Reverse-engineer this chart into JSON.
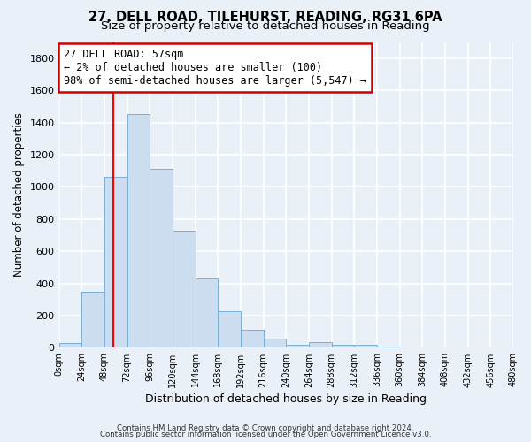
{
  "title": "27, DELL ROAD, TILEHURST, READING, RG31 6PA",
  "subtitle": "Size of property relative to detached houses in Reading",
  "xlabel": "Distribution of detached houses by size in Reading",
  "ylabel": "Number of detached properties",
  "bin_edges": [
    0,
    24,
    48,
    72,
    96,
    120,
    144,
    168,
    192,
    216,
    240,
    264,
    288,
    312,
    336,
    360,
    384,
    408,
    432,
    456,
    480
  ],
  "bar_heights": [
    30,
    350,
    1060,
    1450,
    1110,
    730,
    430,
    225,
    110,
    55,
    20,
    35,
    20,
    20,
    10,
    5,
    5,
    0,
    0
  ],
  "bar_color": "#ccddf0",
  "bar_edge_color": "#7ab0d8",
  "vline_x": 57,
  "vline_color": "red",
  "annotation_line1": "27 DELL ROAD: 57sqm",
  "annotation_line2": "← 2% of detached houses are smaller (100)",
  "annotation_line3": "98% of semi-detached houses are larger (5,547) →",
  "annotation_box_color": "white",
  "annotation_box_edge": "#cc0000",
  "ylim": [
    0,
    1900
  ],
  "yticks": [
    0,
    200,
    400,
    600,
    800,
    1000,
    1200,
    1400,
    1600,
    1800
  ],
  "xtick_labels": [
    "0sqm",
    "24sqm",
    "48sqm",
    "72sqm",
    "96sqm",
    "120sqm",
    "144sqm",
    "168sqm",
    "192sqm",
    "216sqm",
    "240sqm",
    "264sqm",
    "288sqm",
    "312sqm",
    "336sqm",
    "360sqm",
    "384sqm",
    "408sqm",
    "432sqm",
    "456sqm",
    "480sqm"
  ],
  "footer_line1": "Contains HM Land Registry data © Crown copyright and database right 2024.",
  "footer_line2": "Contains public sector information licensed under the Open Government Licence v3.0.",
  "background_color": "#eaf0f8",
  "plot_bg_color": "#eaf0f8",
  "grid_color": "#ffffff",
  "title_fontsize": 10.5,
  "subtitle_fontsize": 9.5,
  "annotation_fontsize": 8.5,
  "ylabel_fontsize": 8.5,
  "xlabel_fontsize": 9
}
